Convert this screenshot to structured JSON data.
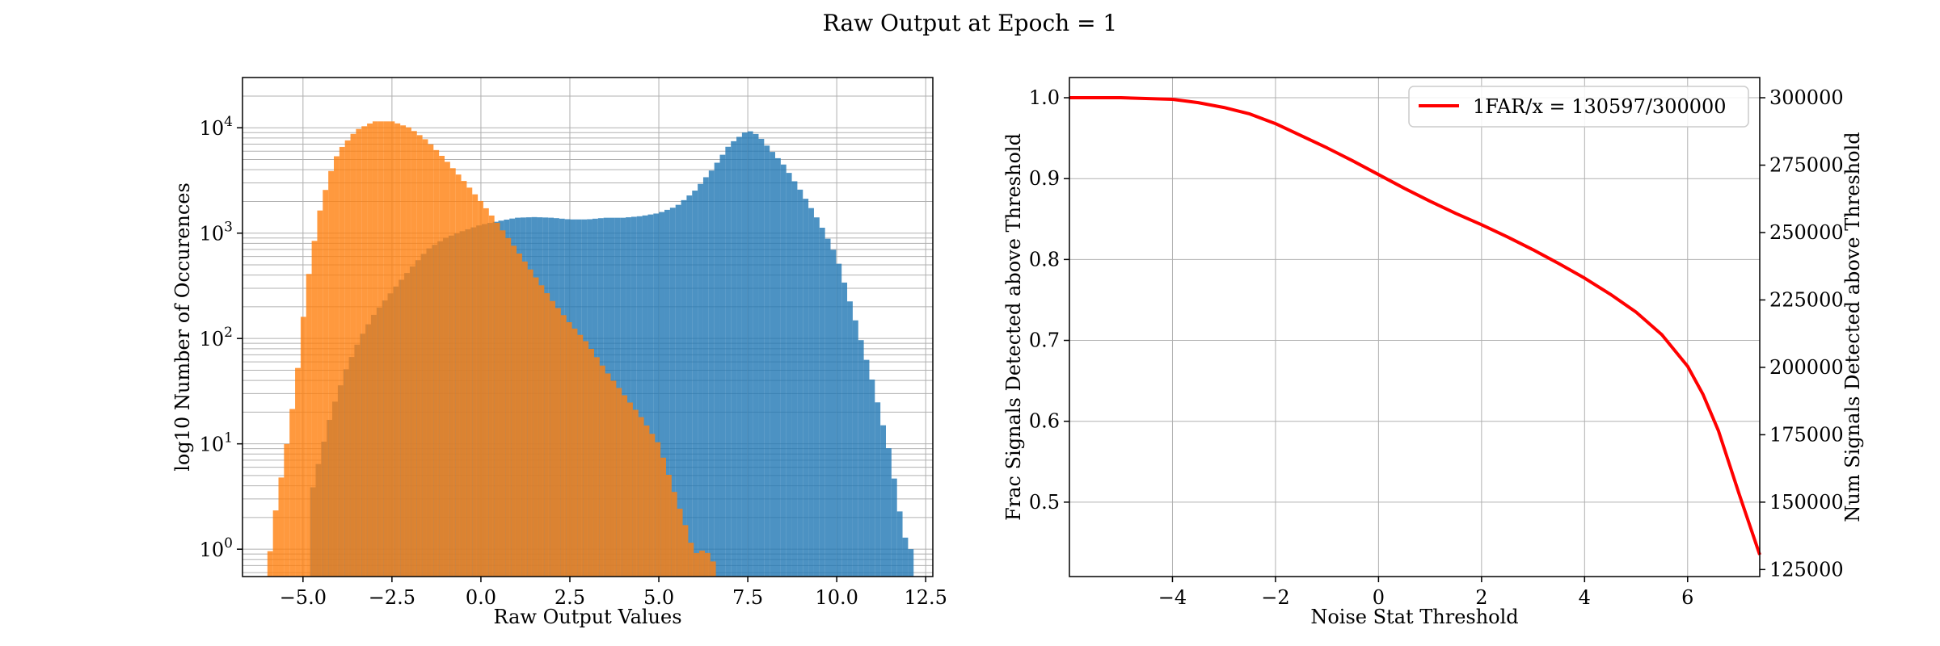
{
  "figure_title": "Raw Output at Epoch = 1",
  "colors": {
    "signal_hist": "#1f77b4",
    "noise_hist": "#ff7f0e",
    "curve": "#ff0000",
    "grid": "#b0b0b0"
  },
  "chart_data": [
    {
      "type": "bar",
      "subtype": "overlaid-histogram",
      "title": "",
      "xlabel": "Raw Output Values",
      "ylabel": "log10 Number of Occurences",
      "xlim": [
        -6.7,
        12.7
      ],
      "ylim": [
        0.55,
        30000
      ],
      "yscale": "log",
      "grid": true,
      "xticks": [
        -5.0,
        -2.5,
        0.0,
        2.5,
        5.0,
        7.5,
        10.0,
        12.5
      ],
      "xtick_labels": [
        "−5.0",
        "−2.5",
        "0.0",
        "2.5",
        "5.0",
        "7.5",
        "10.0",
        "12.5"
      ],
      "yticks": [
        1,
        10,
        100,
        1000,
        10000
      ],
      "ytick_labels": [
        {
          "base": "10",
          "exp": "0"
        },
        {
          "base": "10",
          "exp": "1"
        },
        {
          "base": "10",
          "exp": "2"
        },
        {
          "base": "10",
          "exp": "3"
        },
        {
          "base": "10",
          "exp": "4"
        }
      ],
      "series": [
        {
          "color": "#1f77b4",
          "opacity": 0.8,
          "points": [
            [
              -4.8,
              3
            ],
            [
              -4.5,
              8
            ],
            [
              -4.2,
              20
            ],
            [
              -3.8,
              50
            ],
            [
              -3.4,
              100
            ],
            [
              -3.0,
              170
            ],
            [
              -2.5,
              280
            ],
            [
              -2.0,
              450
            ],
            [
              -1.5,
              700
            ],
            [
              -1.0,
              900
            ],
            [
              -0.5,
              1050
            ],
            [
              0.0,
              1200
            ],
            [
              0.5,
              1300
            ],
            [
              1.0,
              1400
            ],
            [
              1.5,
              1420
            ],
            [
              2.0,
              1400
            ],
            [
              2.5,
              1350
            ],
            [
              3.0,
              1350
            ],
            [
              3.5,
              1400
            ],
            [
              4.0,
              1400
            ],
            [
              4.5,
              1450
            ],
            [
              5.0,
              1550
            ],
            [
              5.5,
              1800
            ],
            [
              6.0,
              2500
            ],
            [
              6.5,
              4000
            ],
            [
              7.0,
              7000
            ],
            [
              7.5,
              9500
            ],
            [
              7.8,
              8500
            ],
            [
              8.0,
              7000
            ],
            [
              8.5,
              4500
            ],
            [
              9.0,
              2500
            ],
            [
              9.5,
              1300
            ],
            [
              10.0,
              600
            ],
            [
              10.5,
              160
            ],
            [
              11.0,
              40
            ],
            [
              11.5,
              8
            ],
            [
              11.8,
              2
            ],
            [
              12.0,
              1
            ],
            [
              12.2,
              1
            ]
          ]
        },
        {
          "color": "#ff7f0e",
          "opacity": 0.8,
          "points": [
            [
              -6.0,
              0.6
            ],
            [
              -5.8,
              2
            ],
            [
              -5.5,
              8
            ],
            [
              -5.2,
              35
            ],
            [
              -5.0,
              150
            ],
            [
              -4.8,
              500
            ],
            [
              -4.5,
              1800
            ],
            [
              -4.2,
              4000
            ],
            [
              -4.0,
              6000
            ],
            [
              -3.5,
              9500
            ],
            [
              -3.0,
              11500
            ],
            [
              -2.5,
              11500
            ],
            [
              -2.0,
              10000
            ],
            [
              -1.5,
              7500
            ],
            [
              -1.0,
              5000
            ],
            [
              -0.5,
              3200
            ],
            [
              0.0,
              2000
            ],
            [
              0.5,
              1200
            ],
            [
              1.0,
              700
            ],
            [
              1.5,
              400
            ],
            [
              2.0,
              230
            ],
            [
              2.5,
              140
            ],
            [
              3.0,
              90
            ],
            [
              3.5,
              50
            ],
            [
              4.0,
              30
            ],
            [
              4.5,
              18
            ],
            [
              5.0,
              10
            ],
            [
              5.5,
              3
            ],
            [
              5.8,
              1.5
            ],
            [
              6.0,
              0.9
            ],
            [
              6.3,
              1
            ],
            [
              6.6,
              0.7
            ]
          ]
        }
      ]
    },
    {
      "type": "line",
      "title": "",
      "xlabel": "Noise Stat Threshold",
      "ylabel": "Frac Signals Detected above Threshold",
      "y2label": "Num Signals Detected above Threshold",
      "xlim": [
        -6.0,
        7.4
      ],
      "ylim": [
        0.408,
        1.025
      ],
      "y2lim": [
        122400,
        307500
      ],
      "grid": true,
      "xticks": [
        -4,
        -2,
        0,
        2,
        4,
        6
      ],
      "xtick_labels": [
        "−4",
        "−2",
        "0",
        "2",
        "4",
        "6"
      ],
      "yticks": [
        0.5,
        0.6,
        0.7,
        0.8,
        0.9,
        1.0
      ],
      "ytick_labels": [
        "0.5",
        "0.6",
        "0.7",
        "0.8",
        "0.9",
        "1.0"
      ],
      "y2ticks": [
        125000,
        150000,
        175000,
        200000,
        225000,
        250000,
        275000,
        300000
      ],
      "y2tick_labels": [
        "125000",
        "150000",
        "175000",
        "200000",
        "225000",
        "250000",
        "275000",
        "300000"
      ],
      "legend_position": "top-right",
      "series": [
        {
          "name": "1FAR/x = 130597/300000",
          "color": "#ff0000",
          "x": [
            -6.0,
            -5.0,
            -4.0,
            -3.5,
            -3.0,
            -2.5,
            -2.0,
            -1.5,
            -1.0,
            -0.5,
            0.0,
            0.5,
            1.0,
            1.5,
            2.0,
            2.5,
            3.0,
            3.5,
            4.0,
            4.5,
            5.0,
            5.5,
            6.0,
            6.3,
            6.6,
            7.0,
            7.4
          ],
          "y": [
            1.0,
            1.0,
            0.998,
            0.994,
            0.988,
            0.98,
            0.968,
            0.953,
            0.938,
            0.922,
            0.905,
            0.888,
            0.872,
            0.857,
            0.843,
            0.828,
            0.812,
            0.795,
            0.777,
            0.757,
            0.735,
            0.707,
            0.668,
            0.633,
            0.588,
            0.51,
            0.435
          ]
        }
      ]
    }
  ]
}
